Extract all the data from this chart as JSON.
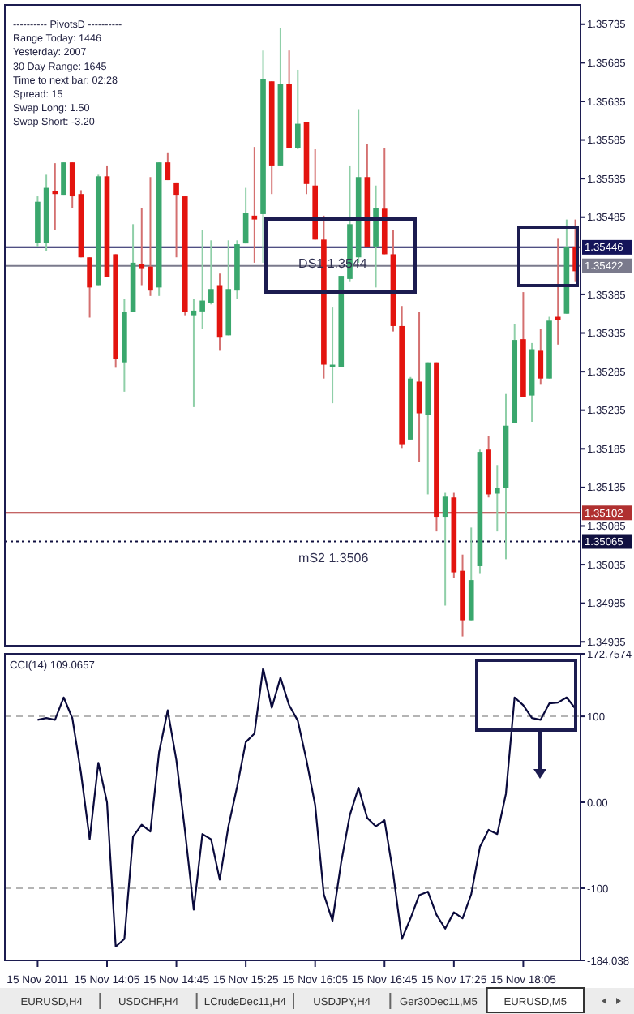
{
  "chart_data": [
    {
      "type": "candlestick",
      "tick_labels": "y",
      "annotations": [
        "---------- PivotsD ----------",
        "Range Today:   1446",
        "Yesterday:   2007",
        "30 Day Range:   1645",
        "Time to next bar:   02:28",
        "Spread:   15",
        "Swap Long:   1.50",
        "Swap Short:   -3.20",
        {
          "text": "DS1  1.3544",
          "y": 1.35446
        },
        {
          "text": "mS2  1.3506",
          "y": 1.35065
        }
      ],
      "categories": [
        null,
        null,
        null,
        null,
        null,
        null,
        null,
        null,
        null,
        null,
        null,
        null,
        null,
        null,
        null,
        null,
        null,
        null,
        null,
        null,
        null,
        null,
        null,
        null,
        null,
        null,
        null,
        null,
        null,
        null,
        null,
        null,
        null,
        null,
        null,
        null,
        null,
        null,
        null,
        null,
        null,
        null,
        null,
        null,
        null,
        null,
        null,
        null,
        null,
        null,
        null,
        null,
        null,
        null,
        null,
        null,
        null,
        null,
        null,
        null,
        null,
        null,
        null
      ],
      "ohlc": [
        [
          1.35452,
          1.35512,
          1.35447,
          1.35505
        ],
        [
          1.35452,
          1.3554,
          1.35441,
          1.35523
        ],
        [
          1.35519,
          1.35555,
          1.35469,
          1.35515
        ],
        [
          1.35513,
          1.35556,
          1.35513,
          1.35556
        ],
        [
          1.35556,
          1.35556,
          1.35497,
          1.35512
        ],
        [
          1.35515,
          1.3552,
          1.35433,
          1.35433
        ],
        [
          1.35433,
          1.35433,
          1.35355,
          1.35394
        ],
        [
          1.35397,
          1.3554,
          1.35397,
          1.35538
        ],
        [
          1.35538,
          1.35551,
          1.35408,
          1.35408
        ],
        [
          1.35437,
          1.35437,
          1.3529,
          1.35301
        ],
        [
          1.35297,
          1.35379,
          1.35259,
          1.35362
        ],
        [
          1.35362,
          1.35476,
          1.35362,
          1.35426
        ],
        [
          1.35424,
          1.35497,
          1.35397,
          1.35419
        ],
        [
          1.35421,
          1.35537,
          1.35383,
          1.3539
        ],
        [
          1.35394,
          1.35556,
          1.35383,
          1.35556
        ],
        [
          1.35556,
          1.35569,
          1.35533,
          1.35533
        ],
        [
          1.3553,
          1.3553,
          1.35433,
          1.35513
        ],
        [
          1.35512,
          1.35512,
          1.35358,
          1.35362
        ],
        [
          1.35358,
          1.35379,
          1.35239,
          1.35364
        ],
        [
          1.35363,
          1.35469,
          1.3534,
          1.35377
        ],
        [
          1.35374,
          1.35455,
          1.35372,
          1.35392
        ],
        [
          1.35397,
          1.35412,
          1.35312,
          1.35329
        ],
        [
          1.35332,
          1.35455,
          1.35332,
          1.35392
        ],
        [
          1.3539,
          1.35455,
          1.35379,
          1.3545
        ],
        [
          1.35451,
          1.35523,
          1.35451,
          1.3549
        ],
        [
          1.35487,
          1.35576,
          1.35426,
          1.35482
        ],
        [
          1.35489,
          1.35701,
          1.35426,
          1.35664
        ],
        [
          1.35661,
          1.35661,
          1.35515,
          1.35551
        ],
        [
          1.35551,
          1.3573,
          1.35551,
          1.35658
        ],
        [
          1.35658,
          1.35701,
          1.35575,
          1.35575
        ],
        [
          1.35575,
          1.35676,
          1.35573,
          1.35606
        ],
        [
          1.35608,
          1.35608,
          1.35515,
          1.35528
        ],
        [
          1.35526,
          1.35573,
          1.35456,
          1.35456
        ],
        [
          1.35456,
          1.35487,
          1.35276,
          1.35294
        ],
        [
          1.35291,
          1.35368,
          1.35244,
          1.35294
        ],
        [
          1.35291,
          1.35409,
          1.35291,
          1.35409
        ],
        [
          1.35405,
          1.35551,
          1.35401,
          1.35476
        ],
        [
          1.35433,
          1.35625,
          1.35426,
          1.35537
        ],
        [
          1.35537,
          1.3558,
          1.35446,
          1.35446
        ],
        [
          1.35447,
          1.35526,
          1.35394,
          1.35497
        ],
        [
          1.35496,
          1.35575,
          1.35437,
          1.35437
        ],
        [
          1.35437,
          1.35469,
          1.35337,
          1.35344
        ],
        [
          1.35344,
          1.3537,
          1.35186,
          1.35191
        ],
        [
          1.35197,
          1.35278,
          1.35197,
          1.35276
        ],
        [
          1.35272,
          1.35362,
          1.35168,
          1.35231
        ],
        [
          1.35229,
          1.35297,
          1.35126,
          1.35297
        ],
        [
          1.35297,
          1.35297,
          1.35078,
          1.35097
        ],
        [
          1.35097,
          1.35128,
          1.34982,
          1.35123
        ],
        [
          1.35122,
          1.35128,
          1.35018,
          1.35025
        ],
        [
          1.35027,
          1.35048,
          1.34942,
          1.34963
        ],
        [
          1.34963,
          1.35083,
          1.34963,
          1.35015
        ],
        [
          1.35033,
          1.35184,
          1.35024,
          1.35181
        ],
        [
          1.35184,
          1.35202,
          1.35122,
          1.35126
        ],
        [
          1.35127,
          1.35164,
          1.35078,
          1.35134
        ],
        [
          1.35134,
          1.35256,
          1.35042,
          1.35215
        ],
        [
          1.35218,
          1.35347,
          1.35218,
          1.35326
        ],
        [
          1.35327,
          1.35388,
          1.35252,
          1.35252
        ],
        [
          1.35254,
          1.35322,
          1.3522,
          1.35314
        ],
        [
          1.35312,
          1.3534,
          1.35269,
          1.35276
        ],
        [
          1.35276,
          1.35356,
          1.35276,
          1.35351
        ],
        [
          1.35356,
          1.35457,
          1.3532,
          1.35352
        ],
        [
          1.3536,
          1.35482,
          1.3536,
          1.35446
        ],
        [
          1.35447,
          1.35482,
          1.35401,
          1.35415
        ]
      ],
      "ylim": [
        1.3493,
        1.3576
      ],
      "yticks": [
        1.35735,
        1.35685,
        1.35635,
        1.35585,
        1.35535,
        1.35485,
        1.35385,
        1.35335,
        1.35285,
        1.35235,
        1.35185,
        1.35135,
        1.35085,
        1.35035,
        1.34985,
        1.34935
      ],
      "ref_lines": [
        {
          "axis": "y",
          "value": 1.35446,
          "label": "1.35446",
          "color": "#14145a"
        },
        {
          "axis": "y",
          "value": 1.35422,
          "label": "1.35422",
          "color": "#7a7a8c"
        },
        {
          "axis": "y",
          "value": 1.35102,
          "label": "1.35102",
          "color": "#b03030"
        },
        {
          "axis": "y",
          "value": 1.35065,
          "label": "1.35065",
          "color": "#101040",
          "line_style": "dotted"
        }
      ]
    },
    {
      "type": "line",
      "title": "CCI(14) 109.0657",
      "categories": [
        "15 Nov 2011",
        null,
        null,
        null,
        null,
        null,
        null,
        null,
        "15 Nov 14:05",
        null,
        null,
        null,
        null,
        null,
        null,
        null,
        "15 Nov 14:45",
        null,
        null,
        null,
        null,
        null,
        null,
        null,
        "15 Nov 15:25",
        null,
        null,
        null,
        null,
        null,
        null,
        null,
        "15 Nov 16:05",
        null,
        null,
        null,
        null,
        null,
        null,
        null,
        "15 Nov 16:45",
        null,
        null,
        null,
        null,
        null,
        null,
        null,
        "15 Nov 17:25",
        null,
        null,
        null,
        null,
        null,
        null,
        null,
        "15 Nov 18:05",
        null,
        null,
        null,
        null,
        null,
        null
      ],
      "series": [
        {
          "color": "#0a0a3c",
          "values": [
            96,
            98,
            96,
            122,
            98,
            34,
            -43,
            46,
            0,
            -168,
            -159,
            -40,
            -26,
            -34,
            58,
            107,
            49,
            -34,
            -125,
            -37,
            -43,
            -90,
            -28,
            18,
            70,
            80,
            156,
            110,
            145,
            113,
            95,
            49,
            -3,
            -107,
            -138,
            -70,
            -15,
            17,
            -18,
            -28,
            -21,
            -83,
            -159,
            -135,
            -108,
            -104,
            -131,
            -147,
            -128,
            -135,
            -107,
            -52,
            -32,
            -37,
            10,
            122,
            113,
            98,
            96,
            115,
            116,
            122,
            109
          ]
        }
      ],
      "ylim": [
        -184.038,
        172.7574
      ],
      "yticks": [
        172.7574,
        100,
        {
          "value": 0,
          "label": "0.00"
        },
        -100,
        -184.038
      ],
      "ref_lines": [
        {
          "axis": "y",
          "value": 100,
          "color": "#b4b4b4",
          "line_style": "dashed"
        },
        {
          "axis": "y",
          "value": -100,
          "color": "#b4b4b4",
          "line_style": "dashed"
        }
      ]
    },
    {
      "type": "other",
      "annotations": [
        "EURUSD,H4",
        "USDCHF,H4",
        "LCrudeDec11,H4",
        "USDJPY,H4",
        "Ger30Dec11,M5",
        "EURUSD,M5"
      ]
    }
  ]
}
